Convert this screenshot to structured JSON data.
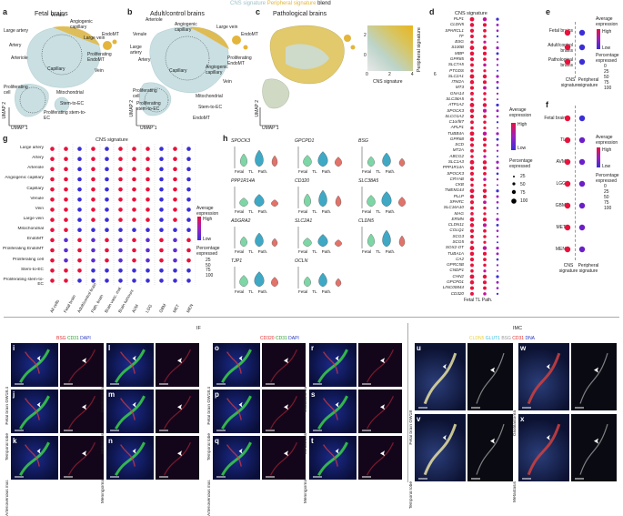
{
  "header": {
    "cns": "CNS signature",
    "peripheral": "Peripheral signature",
    "blend": "blend"
  },
  "panels": {
    "a": {
      "label": "a",
      "title": "Fetal brains",
      "umap1": "UMAP 1",
      "umap2": "UMAP 2",
      "clusters": [
        "Venule",
        "Large artery",
        "Artery",
        "Arteriole",
        "Angiogenic capillary",
        "Capillary",
        "Large vein",
        "Vein",
        "EndoMT",
        "Proliferating EndoMT",
        "Proliferating cell",
        "Mitochondrial",
        "Stem-to-EC",
        "Proliferating stem-to-EC"
      ]
    },
    "b": {
      "label": "b",
      "title": "Adult/control brains",
      "umap1": "UMAP 1",
      "umap2": "UMAP 2",
      "clusters": [
        "Venule",
        "Arteriole",
        "Large artery",
        "Artery",
        "Angiogenic capillary",
        "Large vein",
        "EndoMT",
        "Capillary",
        "Vein",
        "Proliferating EndoMT",
        "Angiogenic capillary",
        "Proliferating cell",
        "Mitochondrial",
        "Stem-to-EC",
        "Proliferating stem-to-EC",
        "EndoMT"
      ]
    },
    "c": {
      "label": "c",
      "title": "Pathological brains",
      "umap1": "UMAP 1",
      "umap2": "UMAP 2",
      "ylab": "Peripheral signature",
      "xlab": "CNS signature"
    },
    "d": {
      "label": "d",
      "title": "CNS signature",
      "genes": [
        "PLP1",
        "CLDN5",
        "SPARCL1",
        "TF",
        "BSG",
        "S100B",
        "MBP",
        "GPR85",
        "SLC7A5",
        "PTGDS",
        "SLC2A1",
        "ITM2A",
        "MT3",
        "GNA14",
        "SLC38A5",
        "ATP1A2",
        "SPOCK3",
        "SLCO1A2",
        "C1orf87",
        "APLP1",
        "TUBB4A",
        "GPR68",
        "SCD",
        "MT2A",
        "ABCG2",
        "SLC1A3",
        "PPP1R14A",
        "SPOCK3",
        "CRYAB",
        "CKB",
        "TMEM144",
        "PLLP",
        "SPARC",
        "SLC16A10",
        "MAG",
        "ERMN",
        "CLDN11",
        "COLQ1",
        "SCG3",
        "SCG5",
        "SOX2-OT",
        "TUBA1A",
        "CA2",
        "GPRC5B",
        "CNDP1",
        "CHN2",
        "GPCPD1",
        "LINC00844",
        "CD320"
      ],
      "xcats": [
        "Fetal",
        "TL",
        "Path."
      ],
      "legend": {
        "expr": "Average expression",
        "high": "High",
        "low": "Low",
        "pct": "Percentage expressed",
        "sizes": [
          "25",
          "50",
          "75",
          "100"
        ]
      }
    },
    "e": {
      "label": "e",
      "rows": [
        "Fetal brains",
        "Adult/control brains",
        "Pathological brains"
      ],
      "cols": [
        "CNS signature",
        "Peripheral signature"
      ],
      "legend": {
        "expr": "Average expression",
        "high": "High",
        "low": "Low",
        "pct": "Percentage expressed",
        "sizes": [
          "0",
          "25",
          "50",
          "75",
          "100"
        ]
      }
    },
    "f": {
      "label": "f",
      "rows": [
        "Fetal brain",
        "TL",
        "AVM",
        "LGG",
        "GBM",
        "MET",
        "MEN"
      ],
      "cols": [
        "CNS signature",
        "Peripheral signature"
      ],
      "legend": {
        "expr": "Average expression",
        "high": "High",
        "low": "Low",
        "pct": "Percentage expressed",
        "sizes": [
          "0",
          "25",
          "50",
          "75",
          "100"
        ]
      }
    },
    "g": {
      "label": "g",
      "title": "CNS signature",
      "rows": [
        "Large artery",
        "Artery",
        "Arteriole",
        "Angiogenic capillary",
        "Capillary",
        "Venule",
        "Vein",
        "Large vein",
        "Mitochondrial",
        "EndoMT",
        "Proliferating EndoMT",
        "Proliferating cell",
        "Stem-to-EC",
        "Proliferating stem-to-EC"
      ],
      "cols": [
        "All cells",
        "Fetal brain",
        "Adult/control brain",
        "Path. brain",
        "Brain vasc. mal.",
        "Brain tumours",
        "AVM",
        "LGG",
        "GBM",
        "MET",
        "MEN"
      ],
      "legend": {
        "expr": "Average expression",
        "high": "High",
        "low": "Low",
        "pct": "Percentage expressed",
        "sizes": [
          "25",
          "50",
          "75",
          "100"
        ]
      }
    },
    "h": {
      "label": "h",
      "genes": [
        "SPOCK3",
        "GPCPD1",
        "BSG",
        "PPP1R14A",
        "CD320",
        "SLC38A5",
        "ADGRA2",
        "SLC2A1",
        "CLDN5",
        "TJP1",
        "OCLN"
      ],
      "xcats": [
        "Fetal",
        "TL",
        "Path."
      ]
    },
    "if": {
      "title": "IF",
      "stain1": {
        "a": "BSG",
        "b": "CD31",
        "c": "DAPI"
      },
      "stain2": {
        "a": "CD320",
        "b": "CD31",
        "c": "DAPI"
      }
    },
    "imc": {
      "title": "IMC",
      "stain": {
        "a": "CLDN5",
        "b": "GLUT1",
        "c": "BSG",
        "d": "CD31",
        "e": "DNA"
      }
    },
    "micro": {
      "i": {
        "label": "i",
        "side": "Fetal brain GW18.4"
      },
      "j": {
        "label": "j",
        "side": "Temporal lobe"
      },
      "k": {
        "label": "k",
        "side": "Arteriovenous mal."
      },
      "l": {
        "label": "l",
        "side": "Glioblastoma"
      },
      "m": {
        "label": "m",
        "side": "Metastasis"
      },
      "n": {
        "label": "n",
        "side": "Meningioma"
      },
      "o": {
        "label": "o",
        "side": "Fetal brain GW18.4"
      },
      "p": {
        "label": "p",
        "side": "Temporal lobe"
      },
      "q": {
        "label": "q",
        "side": "Arteriovenous mal."
      },
      "r": {
        "label": "r",
        "side": "Glioblastoma"
      },
      "s": {
        "label": "s",
        "side": "Metastasis"
      },
      "t": {
        "label": "t",
        "side": "Meningioma"
      },
      "u": {
        "label": "u",
        "side": "Fetal brain GW18"
      },
      "v": {
        "label": "v",
        "side": "Temporal lobe"
      },
      "w": {
        "label": "w",
        "side": "Glioblastoma"
      },
      "x": {
        "label": "x",
        "side": "Metastasis"
      }
    }
  },
  "colors": {
    "cns": "#9bc2c8",
    "peripheral": "#e3b53a",
    "high": "#e8123c",
    "low": "#3a2fd6",
    "mid": "#9b1fc0"
  }
}
